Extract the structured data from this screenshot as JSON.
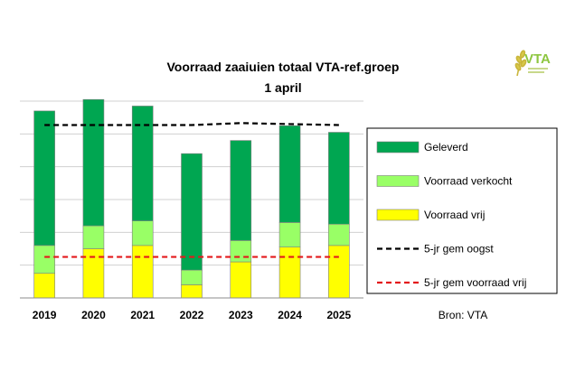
{
  "chart_data": {
    "type": "bar",
    "stacked": true,
    "title": "Voorraad zaaiuien totaal VTA-ref.groep",
    "subtitle": "1 april",
    "xlabel": "",
    "ylabel": "",
    "ylim": [
      0,
      6
    ],
    "grid": true,
    "legend_position": "right",
    "categories": [
      "2019",
      "2020",
      "2021",
      "2022",
      "2023",
      "2024",
      "2025"
    ],
    "series": [
      {
        "name": "Voorraad vrij",
        "color": "#ffff00",
        "values": [
          0.75,
          1.5,
          1.6,
          0.4,
          1.1,
          1.55,
          1.6
        ]
      },
      {
        "name": "Voorraad verkocht",
        "color": "#99ff66",
        "values": [
          0.85,
          0.7,
          0.75,
          0.45,
          0.65,
          0.75,
          0.65
        ]
      },
      {
        "name": "Geleverd",
        "color": "#00a651",
        "values": [
          4.1,
          3.85,
          3.5,
          3.55,
          3.05,
          2.95,
          2.8
        ]
      }
    ],
    "lines": [
      {
        "name": "5-jr gem oogst",
        "color": "#000000",
        "values": [
          5.27,
          5.27,
          5.27,
          5.27,
          5.33,
          5.3,
          5.27
        ]
      },
      {
        "name": "5-jr gem voorraad vrij",
        "color": "#e31a1c",
        "values": [
          1.25,
          1.25,
          1.25,
          1.25,
          1.25,
          1.25,
          1.25
        ]
      }
    ],
    "legend_order": [
      "Geleverd",
      "Voorraad verkocht",
      "Voorraad vrij",
      "5-jr gem oogst",
      "5-jr gem voorraad vrij"
    ],
    "source": "Bron: VTA"
  },
  "logo": {
    "text": "VTA",
    "color": "#8dc63f"
  }
}
